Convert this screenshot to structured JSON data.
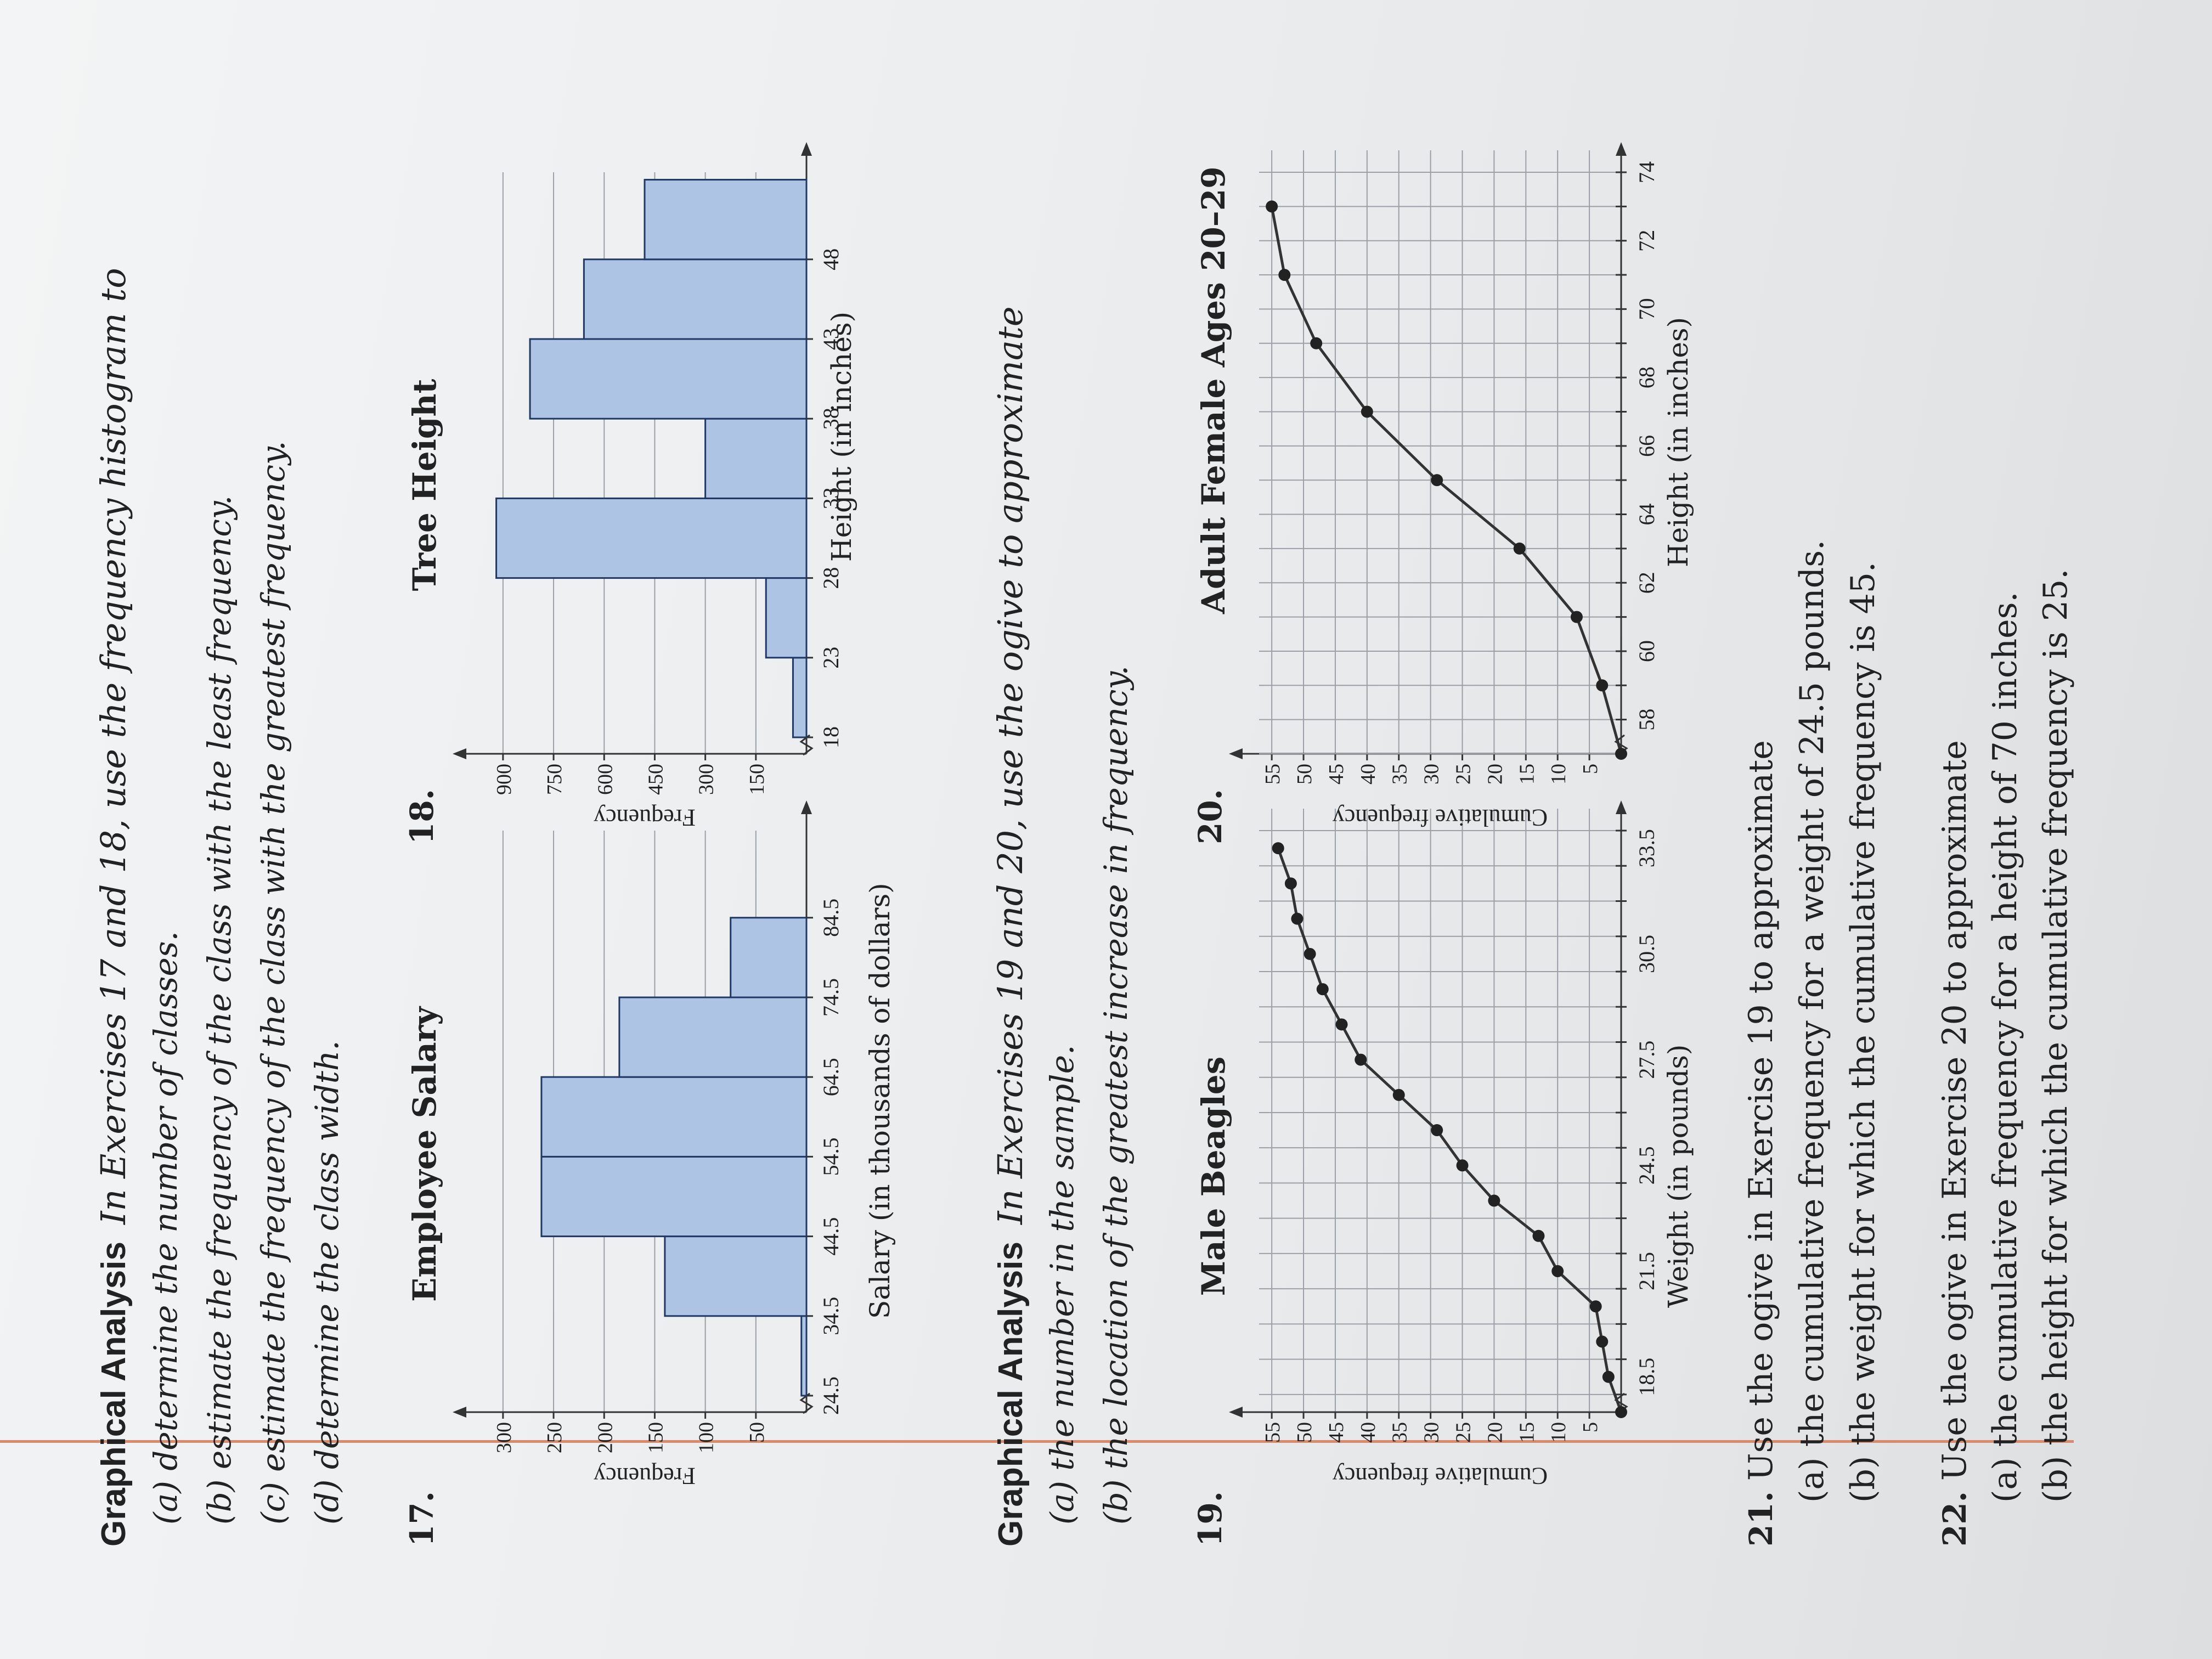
{
  "sec1": {
    "heading": "Graphical Analysis",
    "intro": "In Exercises 17 and 18, use the frequency histogram to",
    "items": [
      "(a)  determine the number of classes.",
      "(b)  estimate the frequency of the class with the least frequency.",
      "(c)  estimate the frequency of the class with the greatest frequency.",
      "(d)  determine the class width."
    ]
  },
  "sec2": {
    "heading": "Graphical Analysis",
    "intro": "In Exercises 19 and 20, use the ogive to approximate",
    "items": [
      "(a)  the number in the sample.",
      "(b)  the location of the greatest increase in frequency."
    ]
  },
  "ex17": {
    "number": "17."
  },
  "ex18": {
    "number": "18."
  },
  "ex19": {
    "number": "19."
  },
  "ex20": {
    "number": "20."
  },
  "ex21": {
    "number": "21.",
    "text": "Use the ogive in Exercise 19 to approximate",
    "items": [
      "(a)  the cumulative frequency for a weight of 24.5 pounds.",
      "(b)  the weight for which the cumulative frequency is 45."
    ]
  },
  "ex22": {
    "number": "22.",
    "text": "Use the ogive in Exercise 20 to approximate",
    "items": [
      "(a)  the cumulative frequency for a height of 70 inches.",
      "(b)  the height for which the cumulative frequency is 25."
    ]
  },
  "chart_data": [
    {
      "type": "bar",
      "title": "Employee Salary",
      "xlabel": "Salary (in thousands of dollars)",
      "ylabel": "Frequency",
      "categories": [
        "24.5",
        "34.5",
        "44.5",
        "54.5",
        "64.5",
        "74.5",
        "84.5"
      ],
      "values": [
        5,
        140,
        262,
        262,
        185,
        75,
        0
      ],
      "yticks": [
        50,
        100,
        150,
        200,
        250,
        300
      ],
      "ylim": [
        0,
        320
      ],
      "grid": true,
      "bar_color": "#aec4e4"
    },
    {
      "type": "bar",
      "title": "Tree Height",
      "xlabel": "Height (in inches)",
      "ylabel": "Frequency",
      "categories": [
        "18",
        "23",
        "28",
        "33",
        "38",
        "43",
        "48"
      ],
      "values": [
        40,
        120,
        920,
        300,
        820,
        660,
        480
      ],
      "yticks": [
        150,
        300,
        450,
        600,
        750,
        900
      ],
      "ylim": [
        0,
        960
      ],
      "grid": true,
      "bar_color": "#aec4e4"
    },
    {
      "type": "line",
      "title": "Male Beagles",
      "xlabel": "Weight (in pounds)",
      "ylabel": "Cumulative frequency",
      "xticks": [
        "18.5",
        "21.5",
        "24.5",
        "27.5",
        "30.5",
        "33.5"
      ],
      "x": [
        17.5,
        18.5,
        19.5,
        20.5,
        21.5,
        22.5,
        23.5,
        24.5,
        25.5,
        26.5,
        27.5,
        28.5,
        29.5,
        30.5,
        31.5,
        32.5,
        33.5
      ],
      "y": [
        0,
        2,
        3,
        4,
        10,
        13,
        20,
        25,
        29,
        35,
        41,
        44,
        47,
        49,
        51,
        52,
        54
      ],
      "yticks": [
        5,
        10,
        15,
        20,
        25,
        30,
        35,
        40,
        45,
        50,
        55
      ],
      "xlim": [
        17.5,
        34
      ],
      "ylim": [
        0,
        57
      ],
      "grid": true
    },
    {
      "type": "line",
      "title": "Adult Female Ages 20–29",
      "xlabel": "Height (in inches)",
      "ylabel": "Cumulative frequency",
      "xticks": [
        "58",
        "60",
        "62",
        "64",
        "66",
        "68",
        "70",
        "72",
        "74"
      ],
      "x": [
        57,
        59,
        61,
        63,
        65,
        67,
        69,
        71,
        73
      ],
      "y": [
        0,
        3,
        7,
        16,
        29,
        40,
        48,
        53,
        55
      ],
      "yticks": [
        5,
        10,
        15,
        20,
        25,
        30,
        35,
        40,
        45,
        50,
        55
      ],
      "xlim": [
        57,
        74
      ],
      "ylim": [
        0,
        57
      ],
      "grid": true
    }
  ]
}
